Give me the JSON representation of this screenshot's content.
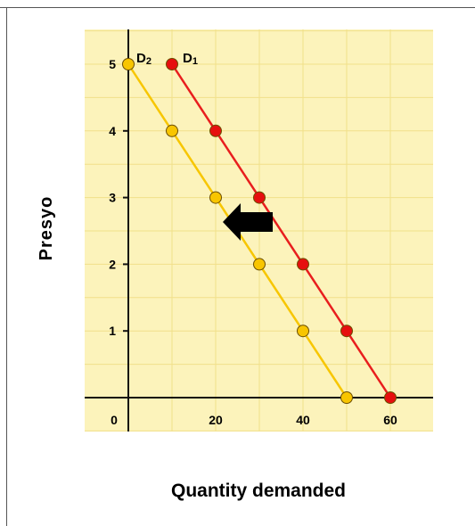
{
  "chart_data": {
    "type": "line",
    "title": "",
    "xlabel": "Quantity demanded",
    "ylabel": "Presyo",
    "xlim": [
      0,
      70
    ],
    "ylim": [
      -0.8,
      5.5
    ],
    "x_ticks": [
      {
        "value": 0,
        "label": "0"
      },
      {
        "value": 20,
        "label": "20"
      },
      {
        "value": 40,
        "label": "40"
      },
      {
        "value": 60,
        "label": "60"
      }
    ],
    "y_ticks": [
      {
        "value": 1,
        "label": "1"
      },
      {
        "value": 2,
        "label": "2"
      },
      {
        "value": 3,
        "label": "3"
      },
      {
        "value": 4,
        "label": "4"
      },
      {
        "value": 5,
        "label": "5"
      }
    ],
    "grid": true,
    "colors": {
      "plot_background": "#fcf3bb",
      "grid": "#f1e08a",
      "axis": "#111111",
      "arrow": "#000000"
    },
    "series": [
      {
        "name": "D1",
        "label_main": "D",
        "label_sub": "1",
        "color": "#e81e1e",
        "marker_fill": "#e60f0f",
        "x": [
          10,
          20,
          30,
          40,
          50,
          60
        ],
        "y": [
          5,
          4,
          3,
          2,
          1,
          0
        ]
      },
      {
        "name": "D2",
        "label_main": "D",
        "label_sub": "2",
        "color": "#f7c600",
        "marker_fill": "#f8c500",
        "x": [
          0,
          10,
          20,
          30,
          40,
          50
        ],
        "y": [
          5,
          4,
          3,
          2,
          1,
          0
        ]
      }
    ],
    "annotations": [
      {
        "type": "arrow",
        "direction": "left",
        "meaning": "shift from D1 to D2"
      }
    ]
  }
}
